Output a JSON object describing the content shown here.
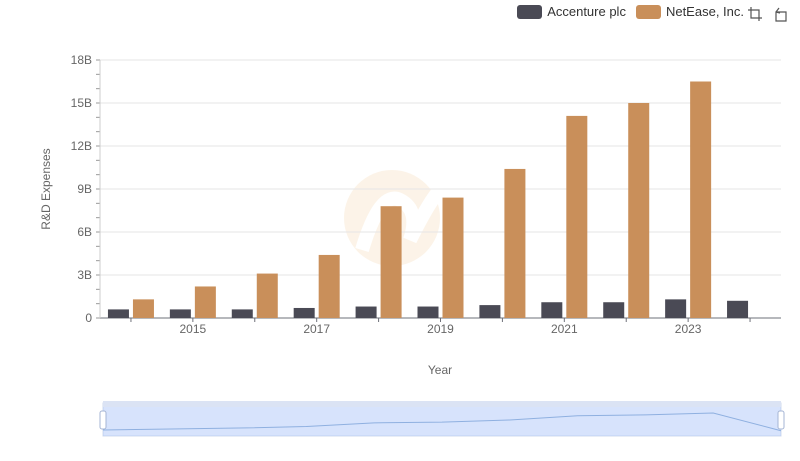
{
  "legend": {
    "items": [
      {
        "label": "Accenture plc",
        "color": "#4a4a55"
      },
      {
        "label": "NetEase, Inc.",
        "color": "#c98f5a"
      }
    ]
  },
  "toolbar": {
    "icons": [
      "zoom-icon",
      "restore-icon"
    ]
  },
  "chart_data": {
    "type": "bar",
    "title": "",
    "xlabel": "Year",
    "ylabel": "R&D Expenses",
    "ylim": [
      0,
      18
    ],
    "yticks": [
      "0",
      "3B",
      "6B",
      "9B",
      "12B",
      "15B",
      "18B"
    ],
    "years": [
      2014,
      2015,
      2016,
      2017,
      2018,
      2019,
      2020,
      2021,
      2022,
      2023,
      2024
    ],
    "xtick_labels": [
      "2015",
      "2017",
      "2019",
      "2021",
      "2023"
    ],
    "series": [
      {
        "name": "Accenture plc",
        "color": "#4a4a55",
        "values": [
          0.6,
          0.6,
          0.6,
          0.7,
          0.8,
          0.8,
          0.9,
          1.1,
          1.1,
          1.3,
          1.2
        ]
      },
      {
        "name": "NetEase, Inc.",
        "color": "#c98f5a",
        "values": [
          1.3,
          2.2,
          3.1,
          4.4,
          7.8,
          8.4,
          10.4,
          14.1,
          15.0,
          16.5,
          null
        ]
      }
    ],
    "dataZoom": {
      "range": [
        0,
        100
      ]
    }
  }
}
